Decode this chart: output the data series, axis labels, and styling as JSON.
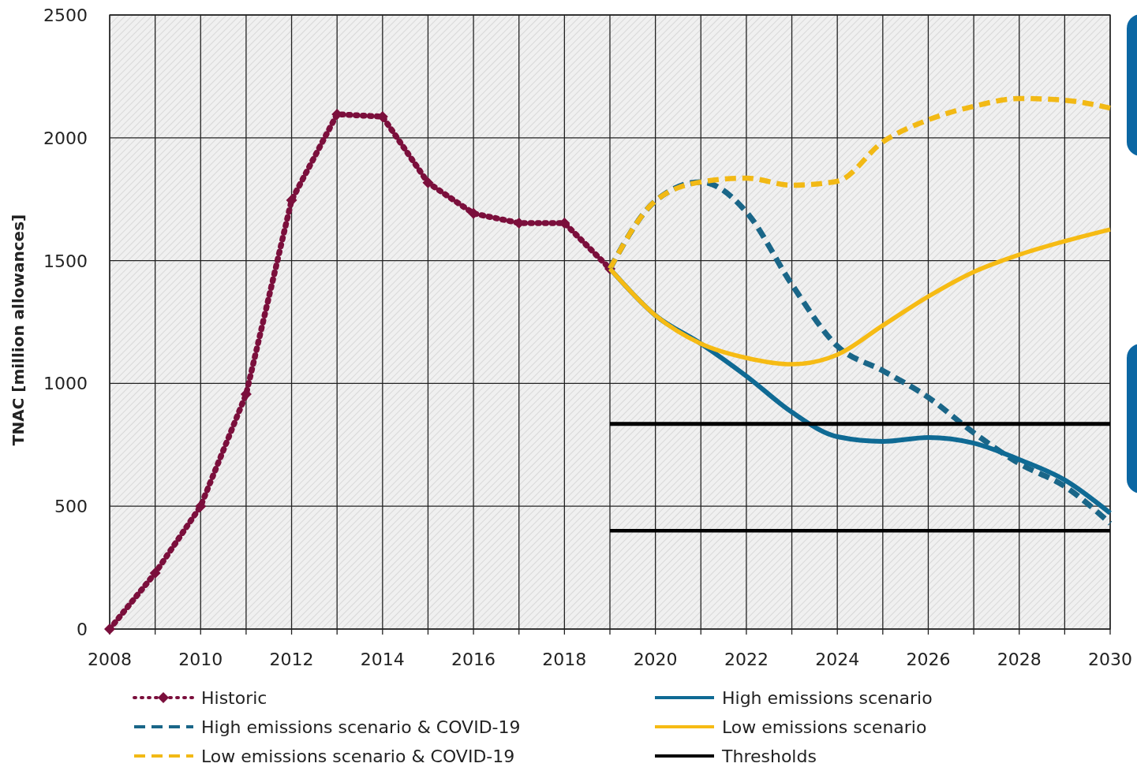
{
  "chart_data": {
    "type": "line",
    "ylabel": "TNAC [million allowances]",
    "xlim": [
      2008,
      2030
    ],
    "xticks": [
      2008,
      {
        "value": 2009,
        "label": null
      },
      2010,
      {
        "value": 2011,
        "label": null
      },
      2012,
      {
        "value": 2013,
        "label": null
      },
      2014,
      {
        "value": 2015,
        "label": null
      },
      2016,
      {
        "value": 2017,
        "label": null
      },
      2018,
      {
        "value": 2019,
        "label": null
      },
      2020,
      {
        "value": 2021,
        "label": null
      },
      2022,
      {
        "value": 2023,
        "label": null
      },
      2024,
      {
        "value": 2025,
        "label": null
      },
      2026,
      {
        "value": 2027,
        "label": null
      },
      2028,
      {
        "value": 2029,
        "label": null
      },
      2030
    ],
    "ylim": [
      0,
      2500
    ],
    "yticks": [
      0,
      500,
      1000,
      1500,
      2000,
      2500
    ],
    "grid": true,
    "legend": "bottom",
    "series": [
      {
        "name": "Historic",
        "color": "#7b0f3c",
        "line_style": "dotted",
        "marker": "diamond",
        "x": [
          2008,
          2009,
          2010,
          2011,
          2012,
          2013,
          2014,
          2015,
          2016,
          2017,
          2018,
          2019
        ],
        "values": [
          0,
          228,
          500,
          956,
          1746,
          2096,
          2086,
          1817,
          1692,
          1653,
          1653,
          1467
        ]
      },
      {
        "name": "High emissions scenario & COVID-19",
        "color": "#1a6688",
        "line_style": "dashed",
        "marker": "none",
        "x": [
          2019,
          2020,
          2021,
          2022,
          2023,
          2024,
          2025,
          2026,
          2027,
          2028,
          2029,
          2030
        ],
        "values": [
          1467,
          1743,
          1820,
          1698,
          1403,
          1152,
          1052,
          943,
          799,
          674,
          581,
          430
        ]
      },
      {
        "name": "Low emissions scenario & COVID-19",
        "color": "#f2b915",
        "line_style": "dashed",
        "marker": "none",
        "x": [
          2019,
          2020,
          2021,
          2022,
          2023,
          2024,
          2025,
          2026,
          2027,
          2028,
          2029,
          2030
        ],
        "values": [
          1467,
          1743,
          1820,
          1836,
          1807,
          1823,
          1983,
          2073,
          2128,
          2160,
          2153,
          2121
        ]
      },
      {
        "name": "High emissions scenario",
        "color": "#0f6a94",
        "line_style": "solid",
        "marker": "none",
        "x": [
          2019,
          2020,
          2021,
          2022,
          2023,
          2024,
          2025,
          2026,
          2027,
          2028,
          2029,
          2030
        ],
        "values": [
          1467,
          1277,
          1162,
          1030,
          883,
          783,
          764,
          780,
          757,
          690,
          607,
          472
        ]
      },
      {
        "name": "Low emissions scenario",
        "color": "#f6bb14",
        "line_style": "solid",
        "marker": "none",
        "x": [
          2019,
          2020,
          2021,
          2022,
          2023,
          2024,
          2025,
          2026,
          2027,
          2028,
          2029,
          2030
        ],
        "values": [
          1467,
          1277,
          1162,
          1104,
          1078,
          1117,
          1236,
          1354,
          1454,
          1524,
          1579,
          1627
        ]
      },
      {
        "name": "Thresholds",
        "color": "#000000",
        "line_style": "solid",
        "marker": "none",
        "x": [
          2019,
          2030
        ],
        "values": [
          835,
          835
        ]
      },
      {
        "color": "#000000",
        "line_style": "solid",
        "marker": "none",
        "x": [
          2019,
          2030
        ],
        "values": [
          400,
          400
        ]
      }
    ]
  }
}
